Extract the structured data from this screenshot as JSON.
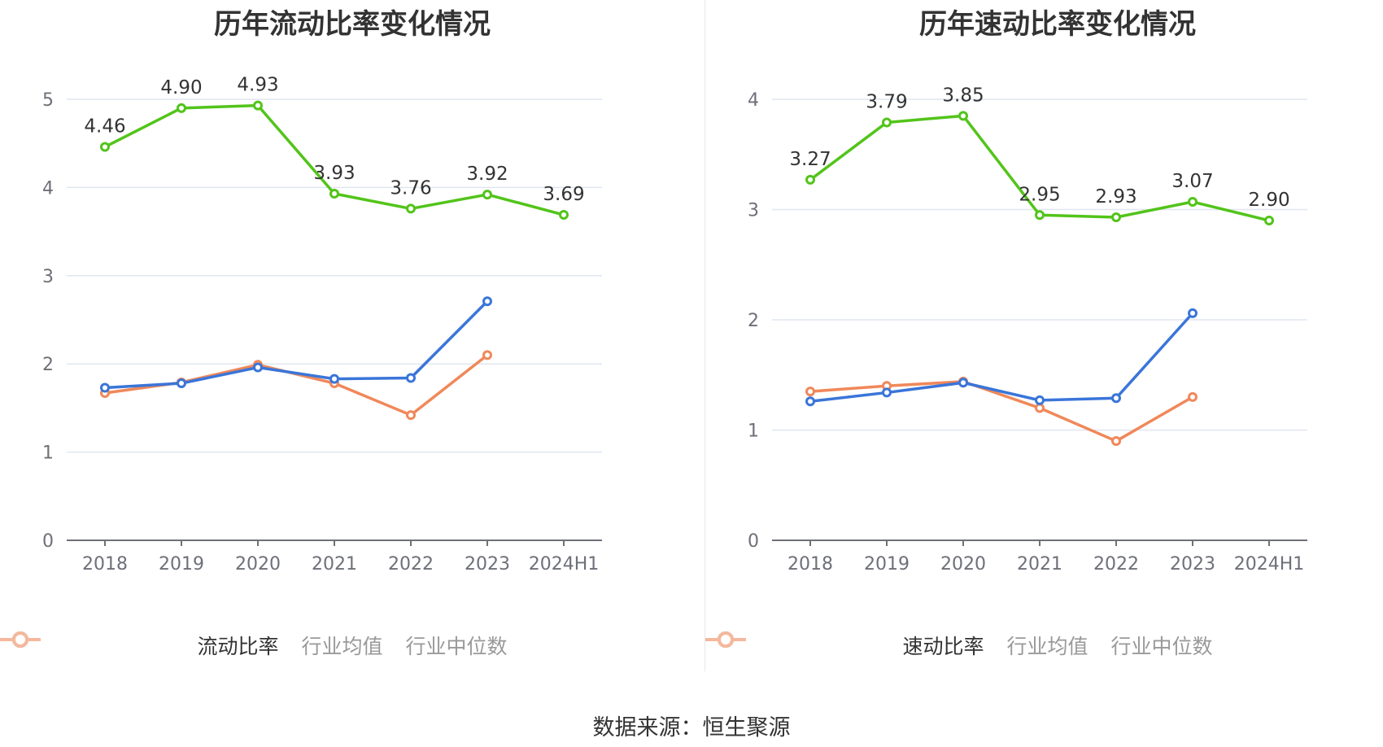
{
  "charts": [
    {
      "title": "历年流动比率变化情况",
      "legend": [
        "流动比率",
        "行业均值",
        "行业中位数"
      ]
    },
    {
      "title": "历年速动比率变化情况",
      "legend": [
        "速动比率",
        "行业均值",
        "行业中位数"
      ]
    }
  ],
  "source": "数据来源：恒生聚源",
  "colors": {
    "main": "#52c41a",
    "mean": "#3a75d9",
    "median": "#f0885a",
    "grid": "#e0e6f1",
    "axis": "#6e7079",
    "label": "#333333"
  },
  "chart_data": [
    {
      "type": "line",
      "title": "历年流动比率变化情况",
      "categories": [
        "2018",
        "2019",
        "2020",
        "2021",
        "2022",
        "2023",
        "2024H1"
      ],
      "ylim": [
        0,
        5
      ],
      "yticks": [
        0,
        1,
        2,
        3,
        4,
        5
      ],
      "series": [
        {
          "name": "流动比率",
          "values": [
            4.46,
            4.9,
            4.93,
            3.93,
            3.76,
            3.92,
            3.69
          ],
          "labels": [
            "4.46",
            "4.90",
            "4.93",
            "3.93",
            "3.76",
            "3.92",
            "3.69"
          ]
        },
        {
          "name": "行业均值",
          "values": [
            1.73,
            1.78,
            1.96,
            1.83,
            1.84,
            2.71,
            null
          ]
        },
        {
          "name": "行业中位数",
          "values": [
            1.67,
            1.79,
            1.99,
            1.78,
            1.42,
            2.1,
            null
          ]
        }
      ]
    },
    {
      "type": "line",
      "title": "历年速动比率变化情况",
      "categories": [
        "2018",
        "2019",
        "2020",
        "2021",
        "2022",
        "2023",
        "2024H1"
      ],
      "ylim": [
        0,
        4
      ],
      "yticks": [
        0,
        1,
        2,
        3,
        4
      ],
      "series": [
        {
          "name": "速动比率",
          "values": [
            3.27,
            3.79,
            3.85,
            2.95,
            2.93,
            3.07,
            2.9
          ],
          "labels": [
            "3.27",
            "3.79",
            "3.85",
            "2.95",
            "2.93",
            "3.07",
            "2.90"
          ]
        },
        {
          "name": "行业均值",
          "values": [
            1.26,
            1.34,
            1.43,
            1.27,
            1.29,
            2.06,
            null
          ]
        },
        {
          "name": "行业中位数",
          "values": [
            1.35,
            1.4,
            1.44,
            1.2,
            0.9,
            1.3,
            null
          ]
        }
      ]
    }
  ]
}
